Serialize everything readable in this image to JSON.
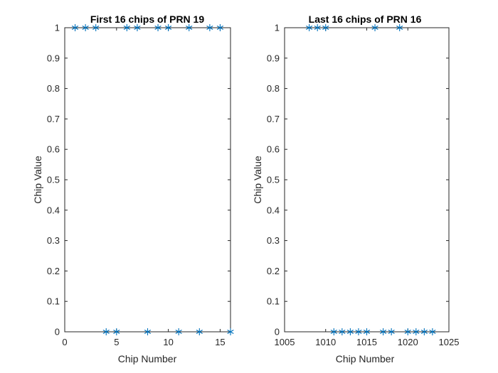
{
  "chart_data": [
    {
      "type": "scatter",
      "title": "First 16 chips of PRN 19",
      "xlabel": "Chip Number",
      "ylabel": "Chip Value",
      "xlim": [
        0,
        16
      ],
      "ylim": [
        0,
        1
      ],
      "xticks": [
        "0",
        "5",
        "10",
        "15"
      ],
      "yticks": [
        "0",
        "0.1",
        "0.2",
        "0.3",
        "0.4",
        "0.5",
        "0.6",
        "0.7",
        "0.8",
        "0.9",
        "1"
      ],
      "marker": "*",
      "color": "#0072BD",
      "x": [
        1,
        2,
        3,
        4,
        5,
        6,
        7,
        8,
        9,
        10,
        11,
        12,
        13,
        14,
        15,
        16
      ],
      "y": [
        1,
        1,
        1,
        0,
        0,
        1,
        1,
        0,
        1,
        1,
        0,
        1,
        0,
        1,
        1,
        0
      ]
    },
    {
      "type": "scatter",
      "title": "Last 16 chips of PRN 16",
      "xlabel": "Chip Number",
      "ylabel": "Chip Value",
      "xlim": [
        1005,
        1025
      ],
      "ylim": [
        0,
        1
      ],
      "xticks": [
        "1005",
        "1010",
        "1015",
        "1020",
        "1025"
      ],
      "yticks": [
        "0",
        "0.1",
        "0.2",
        "0.3",
        "0.4",
        "0.5",
        "0.6",
        "0.7",
        "0.8",
        "0.9",
        "1"
      ],
      "marker": "*",
      "color": "#0072BD",
      "x": [
        1008,
        1009,
        1010,
        1011,
        1012,
        1013,
        1014,
        1015,
        1016,
        1017,
        1018,
        1019,
        1020,
        1021,
        1022,
        1023
      ],
      "y": [
        1,
        1,
        1,
        0,
        0,
        0,
        0,
        0,
        1,
        0,
        0,
        1,
        0,
        0,
        0,
        0
      ]
    }
  ]
}
